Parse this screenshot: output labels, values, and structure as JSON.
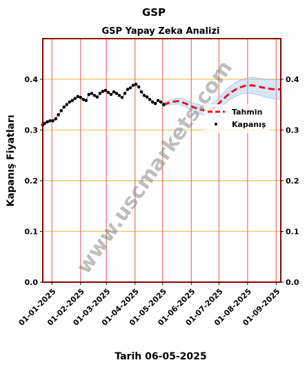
{
  "chart_data": {
    "type": "line",
    "title": "GSP",
    "subtitle": "GSP Yapay Zeka Analizi",
    "xlabel": "Tarih 06-05-2025",
    "ylabel": "Kapanış Fiyatları",
    "ylim": [
      0,
      0.48
    ],
    "yticks": [
      "0.0",
      "0.1",
      "0.2",
      "0.3",
      "0.4"
    ],
    "ytick_values": [
      0,
      0.1,
      0.2,
      0.3,
      0.4
    ],
    "xlim": [
      "2024-12-22",
      "2025-09-06"
    ],
    "xticks": [
      "01-01-2025",
      "01-02-2025",
      "01-03-2025",
      "01-04-2025",
      "01-05-2025",
      "01-06-2025",
      "01-07-2025",
      "01-08-2025",
      "01-09-2025"
    ],
    "xtick_dates": [
      "2025-01-01",
      "2025-02-01",
      "2025-03-01",
      "2025-04-01",
      "2025-05-01",
      "2025-06-01",
      "2025-07-01",
      "2025-08-01",
      "2025-09-01"
    ],
    "grid": true,
    "legend_position": "right",
    "watermark": "www.uscmarkets.com",
    "colors": {
      "forecast": "#e8121a",
      "close": "#000000",
      "band": "#a8c8e8",
      "hgrid": "#f2c56a",
      "vgrid": "#e87a7a",
      "frame": "#8b0000",
      "fitted": "#9a5cc8"
    },
    "series": [
      {
        "name": "Kapanış",
        "style": "points",
        "points": [
          [
            "2024-12-22",
            0.31
          ],
          [
            "2024-12-24",
            0.313
          ],
          [
            "2024-12-27",
            0.316
          ],
          [
            "2024-12-30",
            0.318
          ],
          [
            "2025-01-02",
            0.318
          ],
          [
            "2025-01-05",
            0.322
          ],
          [
            "2025-01-08",
            0.33
          ],
          [
            "2025-01-11",
            0.338
          ],
          [
            "2025-01-14",
            0.345
          ],
          [
            "2025-01-17",
            0.35
          ],
          [
            "2025-01-20",
            0.355
          ],
          [
            "2025-01-23",
            0.358
          ],
          [
            "2025-01-26",
            0.362
          ],
          [
            "2025-01-29",
            0.366
          ],
          [
            "2025-02-01",
            0.364
          ],
          [
            "2025-02-04",
            0.36
          ],
          [
            "2025-02-07",
            0.358
          ],
          [
            "2025-02-10",
            0.37
          ],
          [
            "2025-02-13",
            0.372
          ],
          [
            "2025-02-16",
            0.368
          ],
          [
            "2025-02-19",
            0.365
          ],
          [
            "2025-02-22",
            0.372
          ],
          [
            "2025-02-25",
            0.376
          ],
          [
            "2025-02-28",
            0.378
          ],
          [
            "2025-03-03",
            0.374
          ],
          [
            "2025-03-06",
            0.37
          ],
          [
            "2025-03-09",
            0.375
          ],
          [
            "2025-03-12",
            0.372
          ],
          [
            "2025-03-15",
            0.368
          ],
          [
            "2025-03-18",
            0.364
          ],
          [
            "2025-03-21",
            0.372
          ],
          [
            "2025-03-24",
            0.38
          ],
          [
            "2025-03-27",
            0.383
          ],
          [
            "2025-03-30",
            0.388
          ],
          [
            "2025-04-02",
            0.39
          ],
          [
            "2025-04-05",
            0.385
          ],
          [
            "2025-04-08",
            0.375
          ],
          [
            "2025-04-11",
            0.368
          ],
          [
            "2025-04-14",
            0.365
          ],
          [
            "2025-04-17",
            0.36
          ],
          [
            "2025-04-20",
            0.355
          ],
          [
            "2025-04-23",
            0.352
          ],
          [
            "2025-04-26",
            0.358
          ],
          [
            "2025-04-29",
            0.355
          ],
          [
            "2025-05-02",
            0.35
          ]
        ]
      },
      {
        "name": "Tahmin",
        "style": "dashed",
        "points": [
          [
            "2025-05-02",
            0.35
          ],
          [
            "2025-05-10",
            0.355
          ],
          [
            "2025-05-18",
            0.357
          ],
          [
            "2025-05-26",
            0.352
          ],
          [
            "2025-06-03",
            0.345
          ],
          [
            "2025-06-11",
            0.34
          ],
          [
            "2025-06-19",
            0.337
          ],
          [
            "2025-06-27",
            0.345
          ],
          [
            "2025-07-05",
            0.36
          ],
          [
            "2025-07-13",
            0.373
          ],
          [
            "2025-07-21",
            0.382
          ],
          [
            "2025-07-29",
            0.387
          ],
          [
            "2025-08-06",
            0.388
          ],
          [
            "2025-08-14",
            0.385
          ],
          [
            "2025-08-22",
            0.382
          ],
          [
            "2025-08-30",
            0.38
          ],
          [
            "2025-09-06",
            0.38
          ]
        ]
      }
    ]
  }
}
